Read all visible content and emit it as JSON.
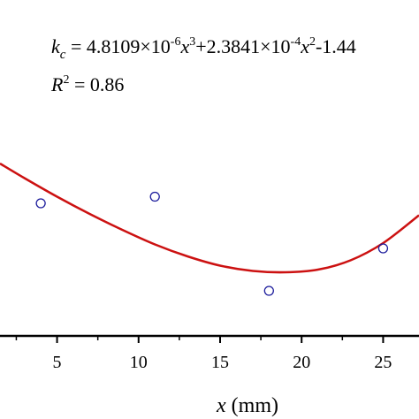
{
  "chart_data": {
    "type": "scatter",
    "annotation": {
      "symbol": "k",
      "subscript": "c",
      "equals": " = ",
      "c1": "4.8109×10",
      "e1": "-6",
      "v1": "x",
      "p1": "3",
      "c2": "+2.3841×10",
      "e2": "-4",
      "v2": "x",
      "p2": "2",
      "tail": "-1.44",
      "r_symbol": "R",
      "r_power": "2",
      "r_value": " = 0.86"
    },
    "xlabel": {
      "var": "x",
      "unit": " (mm)"
    },
    "x_ticks": [
      5,
      10,
      15,
      20,
      25
    ],
    "x_tick_labels": [
      "5",
      "10",
      "15",
      "20",
      "25"
    ],
    "xlim": [
      1.5,
      27.2
    ],
    "ylim": [
      0,
      1
    ],
    "points": [
      {
        "x": 4,
        "y": 0.5
      },
      {
        "x": 11,
        "y": 0.525
      },
      {
        "x": 18,
        "y": 0.17
      },
      {
        "x": 25,
        "y": 0.33
      }
    ],
    "fit_curve": {
      "x": [
        1.5,
        3,
        5,
        7,
        9,
        11,
        13,
        15,
        17,
        19,
        21,
        23,
        25,
        27.2
      ],
      "y": [
        0.65,
        0.595,
        0.525,
        0.46,
        0.4,
        0.345,
        0.3,
        0.265,
        0.245,
        0.24,
        0.25,
        0.285,
        0.35,
        0.455
      ]
    },
    "colors": {
      "curve": "#cc1111",
      "marker": "#1c1c9c",
      "axis": "#000000"
    },
    "grid": false
  }
}
